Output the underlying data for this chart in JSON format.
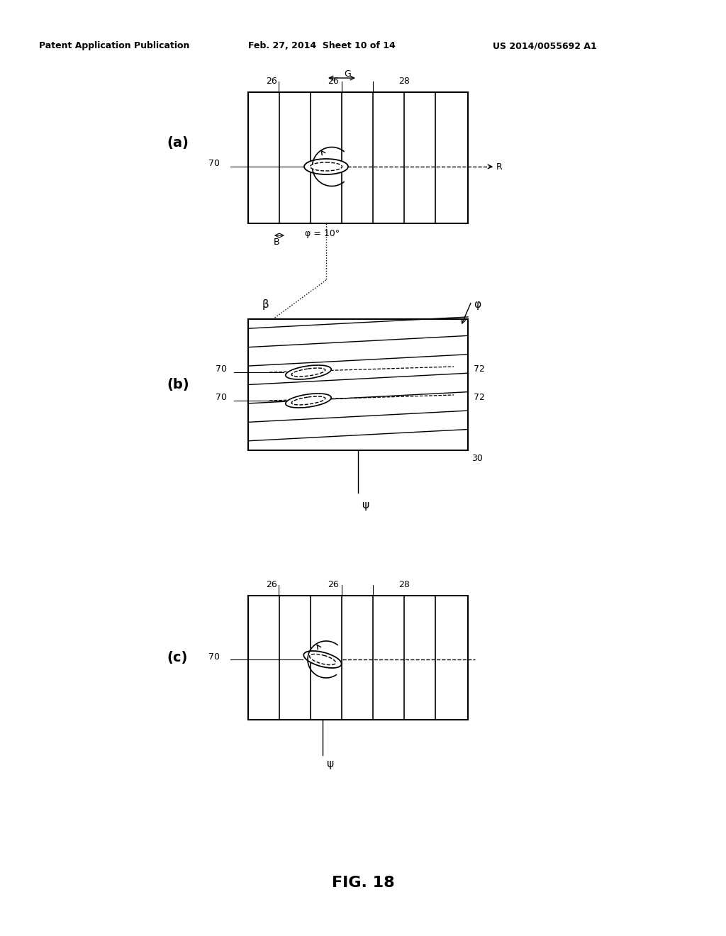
{
  "header_left": "Patent Application Publication",
  "header_mid": "Feb. 27, 2014  Sheet 10 of 14",
  "header_right": "US 2014/0055692 A1",
  "fig_label": "FIG. 18",
  "bg_color": "#ffffff",
  "line_color": "#000000"
}
